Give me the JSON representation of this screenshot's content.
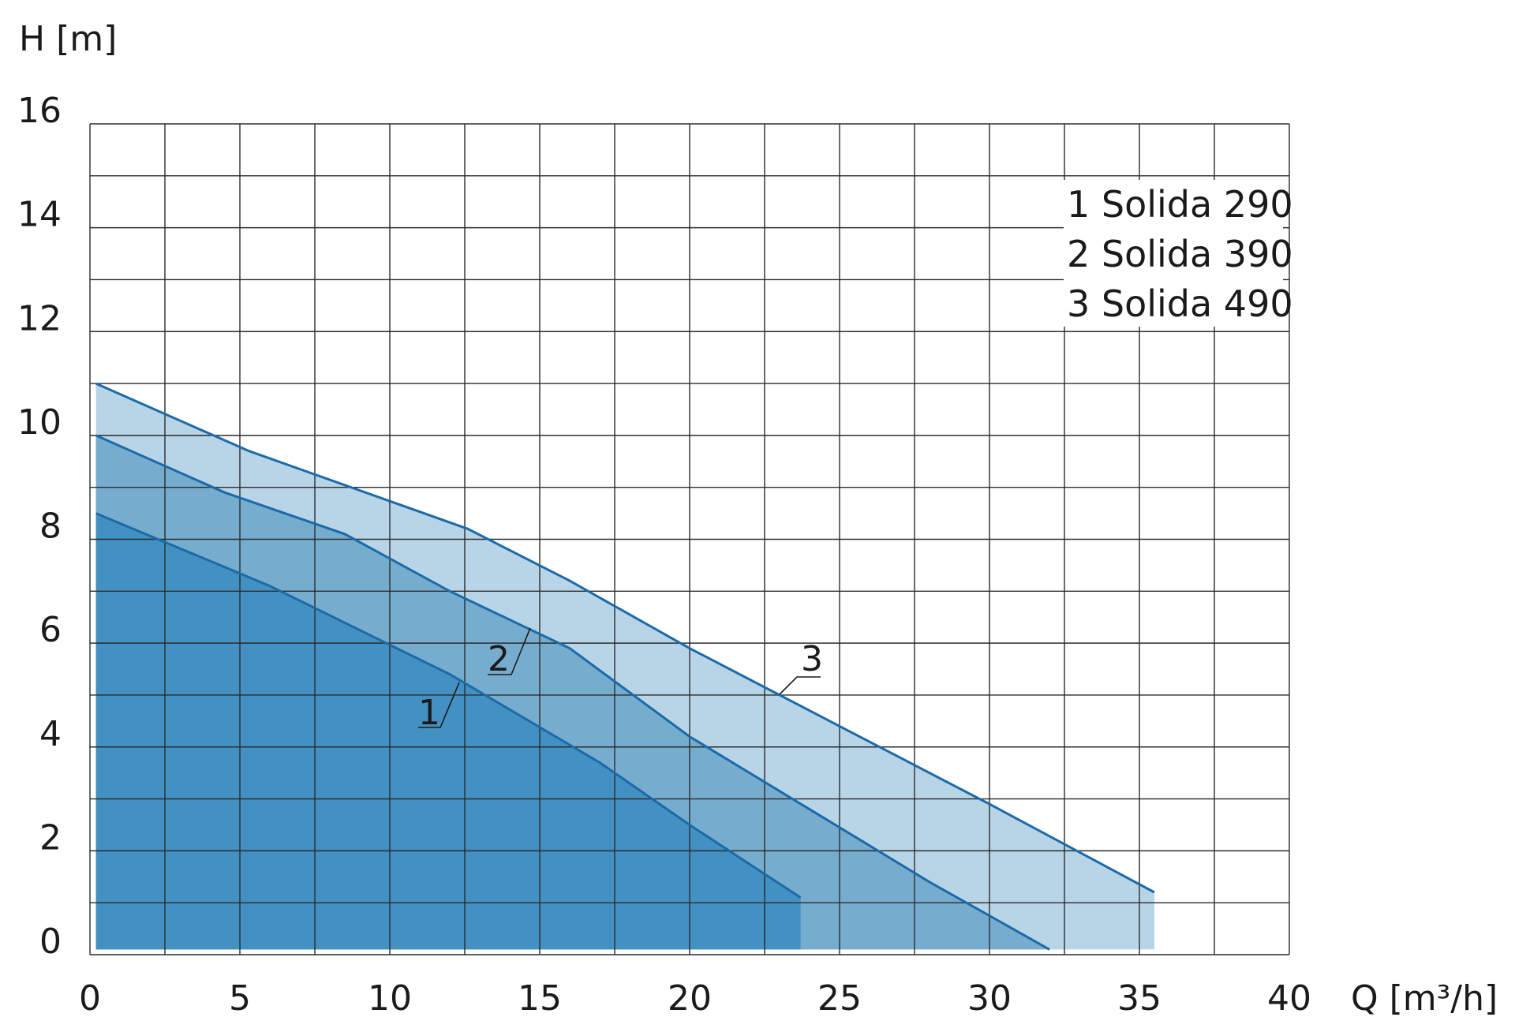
{
  "chart_data": {
    "type": "area",
    "xlabel": "Q [m³/h]",
    "ylabel": "H [m]",
    "xlim": [
      0,
      40
    ],
    "ylim": [
      0,
      16
    ],
    "x_ticks": [
      "0",
      "5",
      "10",
      "15",
      "20",
      "25",
      "30",
      "35",
      "40"
    ],
    "y_ticks": [
      "0",
      "2",
      "4",
      "6",
      "8",
      "10",
      "12",
      "14",
      "16"
    ],
    "grid": true,
    "legend": {
      "placement": "top-right",
      "entries": [
        "1 Solida 290",
        "2 Solida 390",
        "3 Solida 490"
      ]
    },
    "series": [
      {
        "label": "3",
        "fill_color": "#b8d5e8",
        "line_color": "#1c6aa8",
        "x": [
          0.2,
          5.3,
          12.6,
          16.0,
          20.0,
          25.0,
          30.0,
          35.5
        ],
        "y": [
          11.0,
          9.7,
          8.2,
          7.2,
          5.9,
          4.4,
          2.9,
          1.2
        ]
      },
      {
        "label": "2",
        "fill_color": "#76adcf",
        "line_color": "#1c6aa8",
        "x": [
          0.2,
          4.5,
          8.5,
          12.0,
          16.0,
          20.0,
          24.0,
          28.0,
          32.0
        ],
        "y": [
          10.0,
          8.9,
          8.1,
          7.0,
          5.9,
          4.2,
          2.8,
          1.4,
          0.1
        ]
      },
      {
        "label": "1",
        "fill_color": "#4390c3",
        "line_color": "#1c6aa8",
        "x": [
          0.2,
          6.0,
          12.0,
          17.0,
          20.0,
          23.7
        ],
        "y": [
          8.5,
          7.1,
          5.4,
          3.7,
          2.5,
          1.1
        ]
      }
    ]
  }
}
